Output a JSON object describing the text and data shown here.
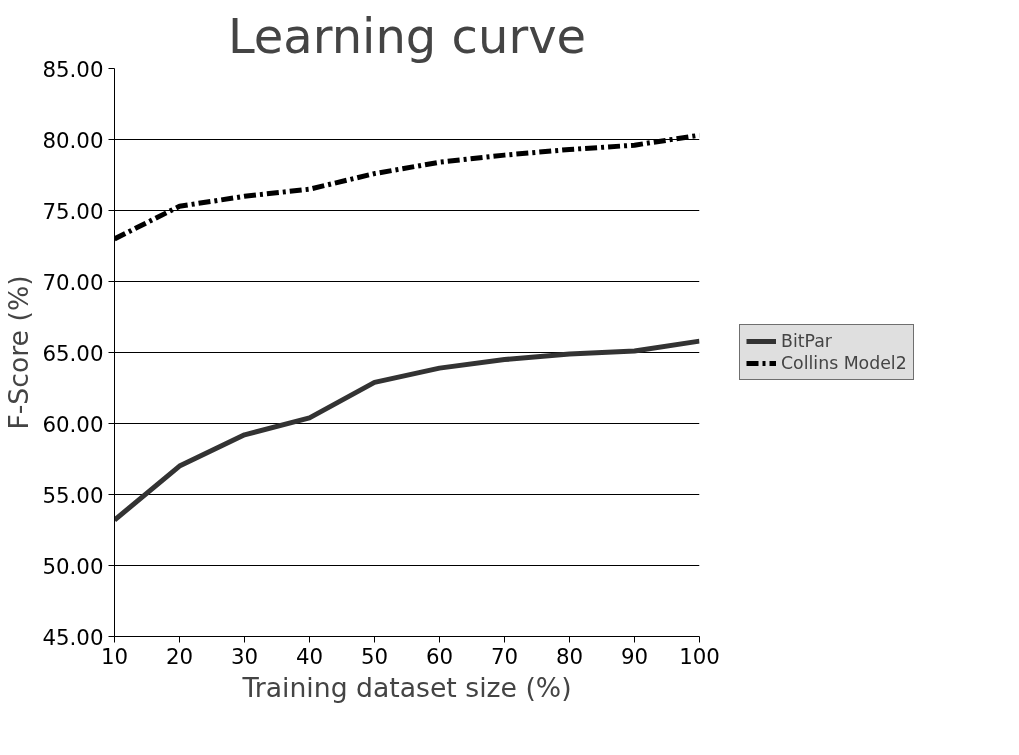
{
  "chart_data": {
    "type": "line",
    "title": "Learning curve",
    "xlabel": "Training dataset size (%)",
    "ylabel": "F-Score (%)",
    "x": [
      10,
      20,
      30,
      40,
      50,
      60,
      70,
      80,
      90,
      100
    ],
    "xlim": [
      10,
      100
    ],
    "xticks": [
      10,
      20,
      30,
      40,
      50,
      60,
      70,
      80,
      90,
      100
    ],
    "ylim": [
      45,
      85
    ],
    "yticks": [
      {
        "value": 45,
        "label": "45.00"
      },
      {
        "value": 50,
        "label": "50.00"
      },
      {
        "value": 55,
        "label": "55.00"
      },
      {
        "value": 60,
        "label": "60.00"
      },
      {
        "value": 65,
        "label": "65.00"
      },
      {
        "value": 70,
        "label": "70.00"
      },
      {
        "value": 75,
        "label": "75.00"
      },
      {
        "value": 80,
        "label": "80.00"
      },
      {
        "value": 85,
        "label": "85.00"
      }
    ],
    "grid": "y",
    "legend": "right",
    "marker": "none",
    "series": [
      {
        "name": "BitPar",
        "color": "#333333",
        "line_style": "solid",
        "values": [
          53.2,
          57.0,
          59.2,
          60.4,
          62.9,
          63.9,
          64.5,
          64.9,
          65.1,
          65.8
        ]
      },
      {
        "name": "Collins Model2",
        "color": "#000000",
        "line_style": "dashdot",
        "values": [
          73.0,
          75.3,
          76.0,
          76.5,
          77.6,
          78.4,
          78.9,
          79.3,
          79.6,
          80.3
        ]
      }
    ]
  }
}
